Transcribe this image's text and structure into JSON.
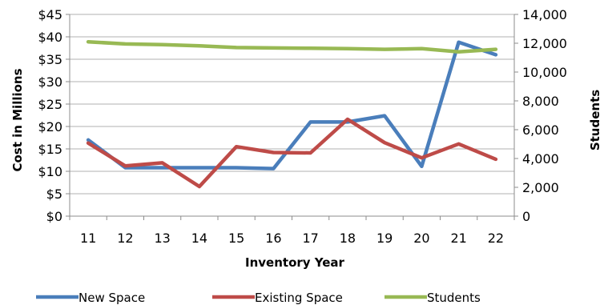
{
  "chart_data": {
    "type": "line",
    "title": "",
    "xlabel": "Inventory Year",
    "ylabel": "Cost in Millions",
    "y2label": "Students",
    "categories": [
      "11",
      "12",
      "13",
      "14",
      "15",
      "16",
      "17",
      "18",
      "19",
      "20",
      "21",
      "22"
    ],
    "y_ticks": [
      "$0",
      "$5",
      "$10",
      "$15",
      "$20",
      "$25",
      "$30",
      "$35",
      "$40",
      "$45"
    ],
    "y2_ticks": [
      "0",
      "2,000",
      "4,000",
      "6,000",
      "8,000",
      "10,000",
      "12,000",
      "14,000"
    ],
    "ylim": [
      0,
      45
    ],
    "y2lim": [
      0,
      14000
    ],
    "grid": true,
    "legend_position": "bottom",
    "series": [
      {
        "name": "New Space",
        "axis": "left",
        "color": "#4a7ebb",
        "values": [
          17,
          10.8,
          10.8,
          10.8,
          10.8,
          10.6,
          21,
          21,
          22.4,
          11.1,
          38.8,
          36
        ]
      },
      {
        "name": "Existing Space",
        "axis": "left",
        "color": "#be4b48",
        "values": [
          16.3,
          11.2,
          11.9,
          6.6,
          15.5,
          14.2,
          14.1,
          21.6,
          16.4,
          13,
          16.1,
          12.7
        ]
      },
      {
        "name": "Students",
        "axis": "right",
        "color": "#98b954",
        "values": [
          12100,
          11950,
          11900,
          11820,
          11700,
          11670,
          11650,
          11620,
          11580,
          11620,
          11400,
          11580
        ]
      }
    ]
  }
}
